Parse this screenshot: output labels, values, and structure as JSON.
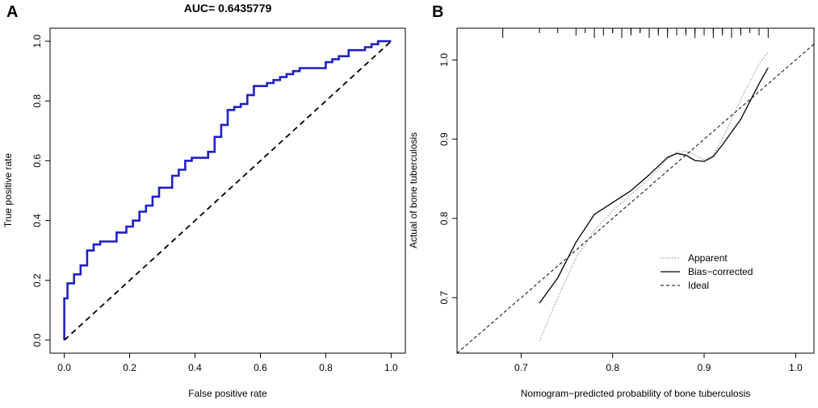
{
  "chart_data": [
    {
      "type": "line",
      "panel_label": "A",
      "title": "AUC= 0.6435779",
      "xlabel": "False positive rate",
      "ylabel": "True positive rate",
      "xlim": [
        0,
        1
      ],
      "ylim": [
        0,
        1
      ],
      "xticks": [
        "0.0",
        "0.2",
        "0.4",
        "0.6",
        "0.8",
        "1.0"
      ],
      "yticks": [
        "0.0",
        "0.2",
        "0.4",
        "0.6",
        "0.8",
        "1.0"
      ],
      "series": [
        {
          "name": "ROC",
          "color": "#1f1fc8",
          "style": "step",
          "x": [
            0,
            0,
            0.01,
            0.01,
            0.03,
            0.03,
            0.05,
            0.05,
            0.07,
            0.07,
            0.09,
            0.09,
            0.11,
            0.11,
            0.16,
            0.16,
            0.19,
            0.19,
            0.21,
            0.21,
            0.23,
            0.23,
            0.25,
            0.25,
            0.27,
            0.27,
            0.29,
            0.29,
            0.33,
            0.33,
            0.35,
            0.35,
            0.37,
            0.37,
            0.39,
            0.39,
            0.44,
            0.44,
            0.46,
            0.46,
            0.48,
            0.48,
            0.5,
            0.5,
            0.52,
            0.52,
            0.54,
            0.54,
            0.56,
            0.56,
            0.58,
            0.58,
            0.62,
            0.62,
            0.64,
            0.64,
            0.66,
            0.66,
            0.68,
            0.68,
            0.7,
            0.7,
            0.72,
            0.72,
            0.8,
            0.8,
            0.82,
            0.82,
            0.84,
            0.84,
            0.87,
            0.87,
            0.92,
            0.92,
            0.94,
            0.94,
            0.96,
            0.96,
            0.98,
            0.98,
            1.0
          ],
          "y": [
            0,
            0.14,
            0.14,
            0.19,
            0.19,
            0.22,
            0.22,
            0.25,
            0.25,
            0.3,
            0.3,
            0.32,
            0.32,
            0.33,
            0.33,
            0.36,
            0.36,
            0.38,
            0.38,
            0.4,
            0.4,
            0.43,
            0.43,
            0.45,
            0.45,
            0.48,
            0.48,
            0.51,
            0.51,
            0.55,
            0.55,
            0.57,
            0.57,
            0.6,
            0.6,
            0.61,
            0.61,
            0.63,
            0.63,
            0.68,
            0.68,
            0.72,
            0.72,
            0.77,
            0.77,
            0.78,
            0.78,
            0.79,
            0.79,
            0.82,
            0.82,
            0.85,
            0.85,
            0.86,
            0.86,
            0.87,
            0.87,
            0.88,
            0.88,
            0.89,
            0.89,
            0.9,
            0.9,
            0.91,
            0.91,
            0.93,
            0.93,
            0.94,
            0.94,
            0.95,
            0.95,
            0.97,
            0.97,
            0.98,
            0.98,
            0.99,
            0.99,
            1.0,
            1.0,
            1.0,
            1.0
          ]
        },
        {
          "name": "Reference",
          "color": "#000000",
          "style": "dashed",
          "x": [
            0,
            1
          ],
          "y": [
            0,
            1
          ]
        }
      ]
    },
    {
      "type": "line",
      "panel_label": "B",
      "title": "",
      "xlabel": "Nomogram−predicted probability of bone tuberculosis",
      "ylabel": "Actual of bone tuberculosis",
      "xlim": [
        0.63,
        1.02
      ],
      "ylim": [
        0.63,
        1.04
      ],
      "xticks": [
        "0.7",
        "0.8",
        "0.9",
        "1.0"
      ],
      "yticks": [
        "0.7",
        "0.8",
        "0.9",
        "1.0"
      ],
      "rug": [
        0.68,
        0.72,
        0.74,
        0.76,
        0.77,
        0.78,
        0.79,
        0.8,
        0.8,
        0.81,
        0.81,
        0.82,
        0.82,
        0.83,
        0.83,
        0.84,
        0.84,
        0.85,
        0.85,
        0.86,
        0.86,
        0.87,
        0.87,
        0.88,
        0.88,
        0.89,
        0.89,
        0.9,
        0.9,
        0.9,
        0.91,
        0.91,
        0.92,
        0.92,
        0.93,
        0.93,
        0.94,
        0.94,
        0.95,
        0.96,
        0.97
      ],
      "legend": {
        "position": "bottom-right",
        "entries": [
          "Apparent",
          "Bias−corrected",
          "Ideal"
        ]
      },
      "series": [
        {
          "name": "Apparent",
          "color": "#888888",
          "style": "dotted",
          "x": [
            0.72,
            0.74,
            0.76,
            0.78,
            0.8,
            0.82,
            0.84,
            0.86,
            0.87,
            0.88,
            0.89,
            0.9,
            0.91,
            0.92,
            0.94,
            0.96,
            0.97
          ],
          "y": [
            0.645,
            0.7,
            0.75,
            0.785,
            0.81,
            0.83,
            0.85,
            0.875,
            0.883,
            0.885,
            0.88,
            0.874,
            0.88,
            0.9,
            0.95,
            0.995,
            1.01
          ]
        },
        {
          "name": "Bias−corrected",
          "color": "#000000",
          "style": "solid",
          "x": [
            0.72,
            0.74,
            0.76,
            0.78,
            0.8,
            0.82,
            0.84,
            0.86,
            0.87,
            0.88,
            0.89,
            0.9,
            0.91,
            0.92,
            0.94,
            0.96,
            0.97
          ],
          "y": [
            0.693,
            0.725,
            0.77,
            0.805,
            0.82,
            0.835,
            0.855,
            0.877,
            0.882,
            0.88,
            0.873,
            0.872,
            0.878,
            0.893,
            0.925,
            0.97,
            0.99
          ]
        },
        {
          "name": "Ideal",
          "color": "#000000",
          "style": "dashed",
          "x": [
            0.63,
            1.02
          ],
          "y": [
            0.63,
            1.02
          ]
        }
      ]
    }
  ]
}
